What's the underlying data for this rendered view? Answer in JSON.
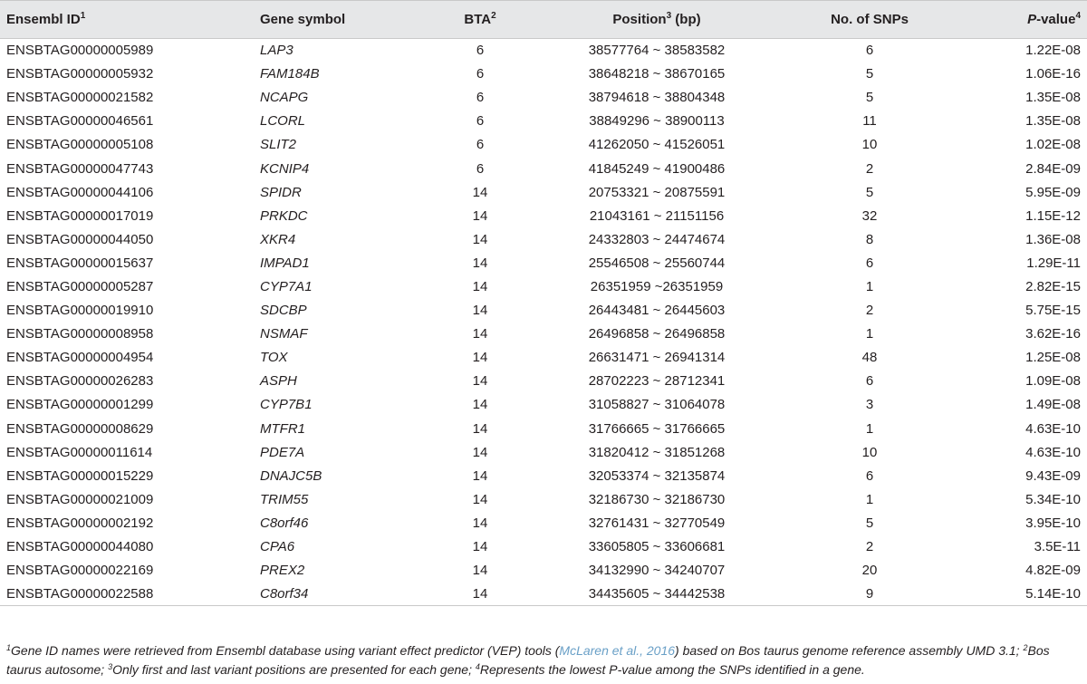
{
  "headers": {
    "ensembl_id": "Ensembl ID",
    "ensembl_id_sup": "1",
    "gene_symbol": "Gene symbol",
    "bta": "BTA",
    "bta_sup": "2",
    "position": "Position",
    "position_sup": "3",
    "position_unit": " (bp)",
    "snps": "No. of SNPs",
    "pvalue_italic": "P",
    "pvalue_rest": "-value",
    "pvalue_sup": "4"
  },
  "rows": [
    {
      "id": "ENSBTAG00000005989",
      "gene": "LAP3",
      "bta": "6",
      "position": "38577764 ~ 38583582",
      "snps": "6",
      "pvalue": "1.22E-08"
    },
    {
      "id": "ENSBTAG00000005932",
      "gene": "FAM184B",
      "bta": "6",
      "position": "38648218 ~ 38670165",
      "snps": "5",
      "pvalue": "1.06E-16"
    },
    {
      "id": "ENSBTAG00000021582",
      "gene": "NCAPG",
      "bta": "6",
      "position": "38794618 ~ 38804348",
      "snps": "5",
      "pvalue": "1.35E-08"
    },
    {
      "id": "ENSBTAG00000046561",
      "gene": "LCORL",
      "bta": "6",
      "position": "38849296 ~ 38900113",
      "snps": "11",
      "pvalue": "1.35E-08"
    },
    {
      "id": "ENSBTAG00000005108",
      "gene": "SLIT2",
      "bta": "6",
      "position": "41262050 ~ 41526051",
      "snps": "10",
      "pvalue": "1.02E-08"
    },
    {
      "id": "ENSBTAG00000047743",
      "gene": "KCNIP4",
      "bta": "6",
      "position": "41845249 ~ 41900486",
      "snps": "2",
      "pvalue": "2.84E-09"
    },
    {
      "id": "ENSBTAG00000044106",
      "gene": "SPIDR",
      "bta": "14",
      "position": "20753321 ~ 20875591",
      "snps": "5",
      "pvalue": "5.95E-09"
    },
    {
      "id": "ENSBTAG00000017019",
      "gene": "PRKDC",
      "bta": "14",
      "position": "21043161 ~ 21151156",
      "snps": "32",
      "pvalue": "1.15E-12"
    },
    {
      "id": "ENSBTAG00000044050",
      "gene": "XKR4",
      "bta": "14",
      "position": "24332803 ~ 24474674",
      "snps": "8",
      "pvalue": "1.36E-08"
    },
    {
      "id": "ENSBTAG00000015637",
      "gene": "IMPAD1",
      "bta": "14",
      "position": "25546508 ~ 25560744",
      "snps": "6",
      "pvalue": "1.29E-11"
    },
    {
      "id": "ENSBTAG00000005287",
      "gene": "CYP7A1",
      "bta": "14",
      "position": "26351959 ~26351959",
      "snps": "1",
      "pvalue": "2.82E-15"
    },
    {
      "id": "ENSBTAG00000019910",
      "gene": "SDCBP",
      "bta": "14",
      "position": "26443481 ~ 26445603",
      "snps": "2",
      "pvalue": "5.75E-15"
    },
    {
      "id": "ENSBTAG00000008958",
      "gene": "NSMAF",
      "bta": "14",
      "position": "26496858 ~ 26496858",
      "snps": "1",
      "pvalue": "3.62E-16"
    },
    {
      "id": "ENSBTAG00000004954",
      "gene": "TOX",
      "bta": "14",
      "position": "26631471 ~ 26941314",
      "snps": "48",
      "pvalue": "1.25E-08"
    },
    {
      "id": "ENSBTAG00000026283",
      "gene": "ASPH",
      "bta": "14",
      "position": "28702223 ~ 28712341",
      "snps": "6",
      "pvalue": "1.09E-08"
    },
    {
      "id": "ENSBTAG00000001299",
      "gene": "CYP7B1",
      "bta": "14",
      "position": "31058827 ~ 31064078",
      "snps": "3",
      "pvalue": "1.49E-08"
    },
    {
      "id": "ENSBTAG00000008629",
      "gene": "MTFR1",
      "bta": "14",
      "position": "31766665 ~ 31766665",
      "snps": "1",
      "pvalue": "4.63E-10"
    },
    {
      "id": "ENSBTAG00000011614",
      "gene": "PDE7A",
      "bta": "14",
      "position": "31820412 ~ 31851268",
      "snps": "10",
      "pvalue": "4.63E-10"
    },
    {
      "id": "ENSBTAG00000015229",
      "gene": "DNAJC5B",
      "bta": "14",
      "position": "32053374 ~ 32135874",
      "snps": "6",
      "pvalue": "9.43E-09"
    },
    {
      "id": "ENSBTAG00000021009",
      "gene": "TRIM55",
      "bta": "14",
      "position": "32186730 ~ 32186730",
      "snps": "1",
      "pvalue": "5.34E-10"
    },
    {
      "id": "ENSBTAG00000002192",
      "gene": "C8orf46",
      "bta": "14",
      "position": "32761431 ~ 32770549",
      "snps": "5",
      "pvalue": "3.95E-10"
    },
    {
      "id": "ENSBTAG00000044080",
      "gene": "CPA6",
      "bta": "14",
      "position": "33605805 ~ 33606681",
      "snps": "2",
      "pvalue": "3.5E-11"
    },
    {
      "id": "ENSBTAG00000022169",
      "gene": "PREX2",
      "bta": "14",
      "position": "34132990 ~ 34240707",
      "snps": "20",
      "pvalue": "4.82E-09"
    },
    {
      "id": "ENSBTAG00000022588",
      "gene": "C8orf34",
      "bta": "14",
      "position": "34435605 ~ 34442538",
      "snps": "9",
      "pvalue": "5.14E-10"
    }
  ],
  "footnote": {
    "n1": "1",
    "t1a": "Gene ID names were retrieved from Ensembl database using variant effect predictor (VEP) tools (",
    "link": "McLaren et al., 2016",
    "t1b": ") based on Bos taurus genome reference assembly UMD 3.1; ",
    "n2": "2",
    "t2": "Bos taurus autosome; ",
    "n3": "3",
    "t3": "Only first and last variant positions are presented for each gene; ",
    "n4": "4",
    "t4": "Represents the lowest P-value among the SNPs identified in a gene."
  }
}
